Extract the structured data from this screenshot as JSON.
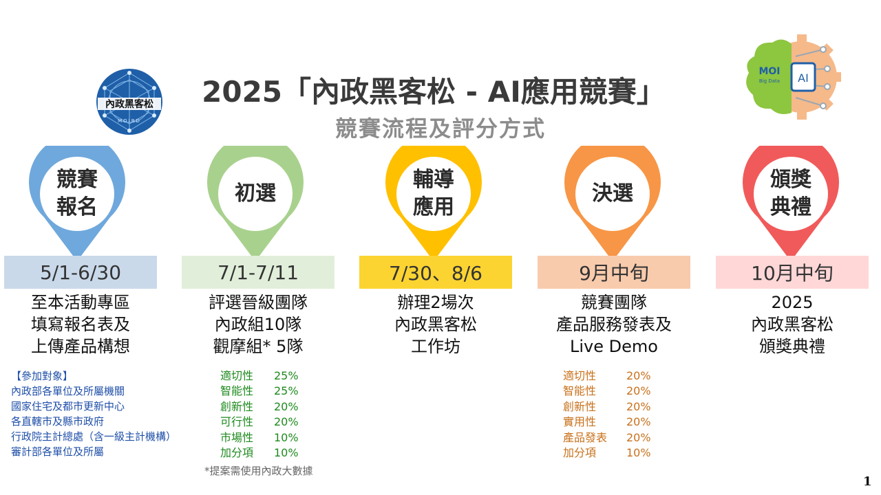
{
  "header": {
    "title": "2025「內政黑客松 - AI應用競賽」",
    "subtitle": "競賽流程及評分方式"
  },
  "logo_left": {
    "text": "內政黑客松",
    "sub": "MOIBD"
  },
  "logo_right": {
    "text1": "MOI",
    "text2": "Big Data",
    "text3": "AI"
  },
  "colors": {
    "stage1": "#6fa8dc",
    "stage2": "#a9d18e",
    "stage3": "#ffc000",
    "stage4": "#f79646",
    "stage5": "#f15a5a",
    "box1": "#c9d9ea",
    "box2": "#e1efda",
    "box3": "#fcd431",
    "box4": "#f8cbad",
    "box5": "#ffd7d7"
  },
  "stages": [
    {
      "label": "競賽\n報名",
      "date": "5/1-6/30",
      "desc": "至本活動專區\n填寫報名表及\n上傳產品構想"
    },
    {
      "label": "初選",
      "date": "7/1-7/11",
      "desc": "評選晉級團隊\n內政組10隊\n觀摩組* 5隊"
    },
    {
      "label": "輔導\n應用",
      "date": "7/30、8/6",
      "desc": "辦理2場次\n內政黑客松\n工作坊"
    },
    {
      "label": "決選",
      "date": "9月中旬",
      "desc": "競賽團隊\n產品服務發表及\nLive Demo"
    },
    {
      "label": "頒獎\n典禮",
      "date": "10月中旬",
      "desc": "2025\n內政黑客松\n頒獎典禮"
    }
  ],
  "participants": {
    "title": "【參加對象】",
    "items": [
      "內政部各單位及所屬機關",
      "國家住宅及都市更新中心",
      "各直轄市及縣市政府",
      "行政院主計總處（含一級主計機構）",
      "審計部各單位及所屬"
    ]
  },
  "preliminary_scoring": [
    {
      "criterion": "適切性",
      "weight": "25%"
    },
    {
      "criterion": "智能性",
      "weight": "25%"
    },
    {
      "criterion": "創新性",
      "weight": "20%"
    },
    {
      "criterion": "可行性",
      "weight": "20%"
    },
    {
      "criterion": "市場性",
      "weight": "10%"
    },
    {
      "criterion": "加分項",
      "weight": "10%"
    }
  ],
  "final_scoring": [
    {
      "criterion": "適切性",
      "weight": "20%"
    },
    {
      "criterion": "智能性",
      "weight": "20%"
    },
    {
      "criterion": "創新性",
      "weight": "20%"
    },
    {
      "criterion": "實用性",
      "weight": "20%"
    },
    {
      "criterion": "產品發表",
      "weight": "20%"
    },
    {
      "criterion": "加分項",
      "weight": "10%"
    }
  ],
  "note": "*提案需使用內政大數據",
  "page_number": "1"
}
